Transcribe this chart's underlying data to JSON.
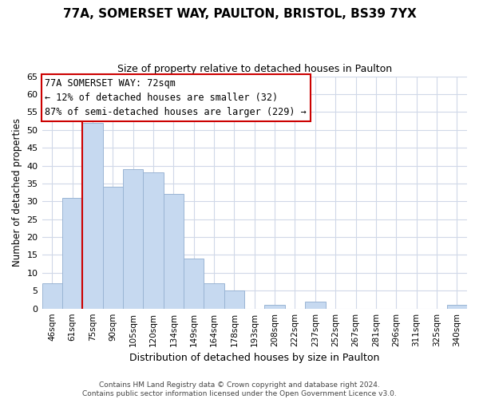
{
  "title": "77A, SOMERSET WAY, PAULTON, BRISTOL, BS39 7YX",
  "subtitle": "Size of property relative to detached houses in Paulton",
  "xlabel": "Distribution of detached houses by size in Paulton",
  "ylabel": "Number of detached properties",
  "bin_labels": [
    "46sqm",
    "61sqm",
    "75sqm",
    "90sqm",
    "105sqm",
    "120sqm",
    "134sqm",
    "149sqm",
    "164sqm",
    "178sqm",
    "193sqm",
    "208sqm",
    "222sqm",
    "237sqm",
    "252sqm",
    "267sqm",
    "281sqm",
    "296sqm",
    "311sqm",
    "325sqm",
    "340sqm"
  ],
  "bar_heights": [
    7,
    31,
    52,
    34,
    39,
    38,
    32,
    14,
    7,
    5,
    0,
    1,
    0,
    2,
    0,
    0,
    0,
    0,
    0,
    0,
    1
  ],
  "bar_color": "#c6d9f0",
  "bar_edge_color": "#9ab5d4",
  "vline_color": "#cc0000",
  "annotation_title": "77A SOMERSET WAY: 72sqm",
  "annotation_line1": "← 12% of detached houses are smaller (32)",
  "annotation_line2": "87% of semi-detached houses are larger (229) →",
  "annotation_box_color": "#ffffff",
  "annotation_box_edge": "#cc0000",
  "footer1": "Contains HM Land Registry data © Crown copyright and database right 2024.",
  "footer2": "Contains public sector information licensed under the Open Government Licence v3.0.",
  "ylim": [
    0,
    65
  ],
  "yticks": [
    0,
    5,
    10,
    15,
    20,
    25,
    30,
    35,
    40,
    45,
    50,
    55,
    60,
    65
  ],
  "bg_color": "#ffffff",
  "grid_color": "#d0d8e8"
}
